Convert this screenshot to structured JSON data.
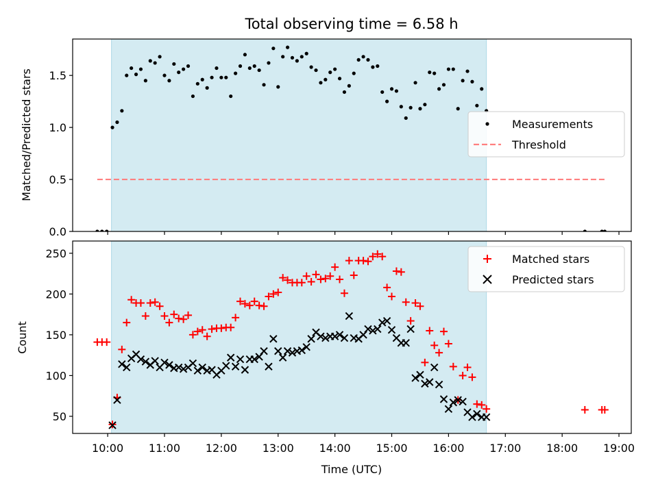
{
  "figure": {
    "title": "Total observing time = 6.58 h",
    "shade_color": "#add8e6",
    "xticks": [
      "10:00",
      "11:00",
      "12:00",
      "13:00",
      "14:00",
      "15:00",
      "16:00",
      "17:00",
      "18:00",
      "19:00"
    ]
  },
  "chart_data": [
    {
      "type": "scatter",
      "ylabel": "Matched/Predicted stars",
      "xlim": [
        "09:23",
        "19:13"
      ],
      "ylim": [
        0,
        1.85
      ],
      "yticks": [
        "0.0",
        "0.5",
        "1.0",
        "1.5"
      ],
      "shaded_span": [
        "10:04",
        "16:40"
      ],
      "legend_position": "center-right",
      "series": [
        {
          "name": "Measurements",
          "marker": "dot",
          "color": "#000000",
          "x": [
            "09:49",
            "09:54",
            "09:59",
            "10:05",
            "10:10",
            "10:15",
            "10:20",
            "10:25",
            "10:30",
            "10:35",
            "10:40",
            "10:45",
            "10:50",
            "10:55",
            "11:00",
            "11:05",
            "11:10",
            "11:15",
            "11:20",
            "11:25",
            "11:30",
            "11:35",
            "11:40",
            "11:45",
            "11:50",
            "11:55",
            "12:00",
            "12:05",
            "12:10",
            "12:15",
            "12:20",
            "12:25",
            "12:30",
            "12:35",
            "12:40",
            "12:45",
            "12:50",
            "12:55",
            "13:00",
            "13:05",
            "13:10",
            "13:15",
            "13:20",
            "13:25",
            "13:30",
            "13:35",
            "13:40",
            "13:45",
            "13:50",
            "13:55",
            "14:00",
            "14:05",
            "14:10",
            "14:15",
            "14:20",
            "14:25",
            "14:30",
            "14:35",
            "14:40",
            "14:45",
            "14:50",
            "14:55",
            "15:00",
            "15:05",
            "15:10",
            "15:15",
            "15:20",
            "15:25",
            "15:30",
            "15:35",
            "15:40",
            "15:45",
            "15:50",
            "15:55",
            "16:00",
            "16:05",
            "16:10",
            "16:15",
            "16:20",
            "16:25",
            "16:30",
            "16:35",
            "16:40",
            "18:24",
            "18:42",
            "18:45"
          ],
          "y": [
            0,
            0,
            0,
            1.0,
            1.05,
            1.16,
            1.5,
            1.57,
            1.51,
            1.56,
            1.45,
            1.64,
            1.62,
            1.68,
            1.5,
            1.45,
            1.61,
            1.53,
            1.56,
            1.59,
            1.3,
            1.42,
            1.46,
            1.38,
            1.48,
            1.57,
            1.48,
            1.48,
            1.3,
            1.52,
            1.59,
            1.7,
            1.57,
            1.59,
            1.55,
            1.41,
            1.62,
            1.76,
            1.39,
            1.68,
            1.77,
            1.67,
            1.64,
            1.68,
            1.71,
            1.58,
            1.55,
            1.43,
            1.46,
            1.53,
            1.56,
            1.47,
            1.34,
            1.4,
            1.52,
            1.65,
            1.68,
            1.65,
            1.58,
            1.59,
            1.34,
            1.25,
            1.37,
            1.35,
            1.2,
            1.09,
            1.19,
            1.43,
            1.18,
            1.22,
            1.53,
            1.52,
            1.37,
            1.41,
            1.56,
            1.56,
            1.18,
            1.45,
            1.54,
            1.44,
            1.21,
            1.37,
            1.16,
            0,
            0,
            0
          ]
        },
        {
          "name": "Threshold",
          "marker": "dashed-line",
          "color": "#ff7f7f",
          "x": [
            "09:49",
            "18:45"
          ],
          "y": [
            0.5,
            0.5
          ]
        }
      ]
    },
    {
      "type": "scatter",
      "ylabel": "Count",
      "xlabel": "Time (UTC)",
      "xlim": [
        "09:23",
        "19:13"
      ],
      "ylim": [
        29,
        265
      ],
      "yticks": [
        "50",
        "100",
        "150",
        "200",
        "250"
      ],
      "shaded_span": [
        "10:04",
        "16:40"
      ],
      "legend_position": "top-right",
      "series": [
        {
          "name": "Matched stars",
          "marker": "plus",
          "color": "#ff0000",
          "x": [
            "09:49",
            "09:54",
            "09:59",
            "10:05",
            "10:10",
            "10:15",
            "10:20",
            "10:25",
            "10:30",
            "10:35",
            "10:40",
            "10:45",
            "10:50",
            "10:55",
            "11:00",
            "11:05",
            "11:10",
            "11:15",
            "11:20",
            "11:25",
            "11:30",
            "11:35",
            "11:40",
            "11:45",
            "11:50",
            "11:55",
            "12:00",
            "12:05",
            "12:10",
            "12:15",
            "12:20",
            "12:25",
            "12:30",
            "12:35",
            "12:40",
            "12:45",
            "12:50",
            "12:55",
            "13:00",
            "13:05",
            "13:10",
            "13:15",
            "13:20",
            "13:25",
            "13:30",
            "13:35",
            "13:40",
            "13:45",
            "13:50",
            "13:55",
            "14:00",
            "14:05",
            "14:10",
            "14:15",
            "14:20",
            "14:25",
            "14:30",
            "14:35",
            "14:40",
            "14:45",
            "14:50",
            "14:55",
            "15:00",
            "15:05",
            "15:10",
            "15:15",
            "15:20",
            "15:25",
            "15:30",
            "15:35",
            "15:40",
            "15:45",
            "15:50",
            "15:55",
            "16:00",
            "16:05",
            "16:10",
            "16:15",
            "16:20",
            "16:25",
            "16:30",
            "16:35",
            "16:40",
            "18:24",
            "18:42",
            "18:45"
          ],
          "y": [
            141,
            141,
            141,
            40,
            73,
            132,
            165,
            193,
            189,
            189,
            173,
            189,
            190,
            185,
            173,
            165,
            175,
            170,
            169,
            174,
            150,
            154,
            156,
            148,
            157,
            158,
            158,
            159,
            159,
            171,
            191,
            188,
            186,
            191,
            186,
            185,
            197,
            200,
            202,
            220,
            217,
            214,
            214,
            214,
            222,
            215,
            224,
            218,
            219,
            222,
            233,
            218,
            201,
            241,
            223,
            241,
            241,
            240,
            246,
            249,
            246,
            208,
            197,
            228,
            227,
            190,
            167,
            189,
            185,
            116,
            155,
            137,
            128,
            154,
            139,
            111,
            70,
            100,
            110,
            98,
            65,
            64,
            59,
            58,
            58,
            58
          ]
        },
        {
          "name": "Predicted stars",
          "marker": "x",
          "color": "#000000",
          "x": [
            "10:05",
            "10:10",
            "10:15",
            "10:20",
            "10:25",
            "10:30",
            "10:35",
            "10:40",
            "10:45",
            "10:50",
            "10:55",
            "11:00",
            "11:05",
            "11:10",
            "11:15",
            "11:20",
            "11:25",
            "11:30",
            "11:35",
            "11:40",
            "11:45",
            "11:50",
            "11:55",
            "12:00",
            "12:05",
            "12:10",
            "12:15",
            "12:20",
            "12:25",
            "12:30",
            "12:35",
            "12:40",
            "12:45",
            "12:50",
            "12:55",
            "13:00",
            "13:05",
            "13:10",
            "13:15",
            "13:20",
            "13:25",
            "13:30",
            "13:35",
            "13:40",
            "13:45",
            "13:50",
            "13:55",
            "14:00",
            "14:05",
            "14:10",
            "14:15",
            "14:20",
            "14:25",
            "14:30",
            "14:35",
            "14:40",
            "14:45",
            "14:50",
            "14:55",
            "15:00",
            "15:05",
            "15:10",
            "15:15",
            "15:20",
            "15:25",
            "15:30",
            "15:35",
            "15:40",
            "15:45",
            "15:50",
            "15:55",
            "16:00",
            "16:05",
            "16:10",
            "16:15",
            "16:20",
            "16:25",
            "16:30",
            "16:35",
            "16:40"
          ],
          "y": [
            39,
            70,
            114,
            110,
            121,
            126,
            120,
            117,
            113,
            118,
            110,
            116,
            113,
            109,
            110,
            108,
            110,
            115,
            106,
            110,
            106,
            107,
            101,
            106,
            112,
            122,
            111,
            120,
            107,
            120,
            120,
            123,
            130,
            111,
            145,
            130,
            122,
            130,
            128,
            130,
            131,
            135,
            145,
            153,
            148,
            146,
            148,
            148,
            150,
            146,
            173,
            146,
            145,
            150,
            157,
            155,
            157,
            165,
            167,
            156,
            146,
            140,
            140,
            157,
            97,
            101,
            90,
            92,
            110,
            89,
            71,
            59,
            67,
            70,
            68,
            55,
            49,
            53,
            49,
            49
          ]
        }
      ]
    }
  ]
}
